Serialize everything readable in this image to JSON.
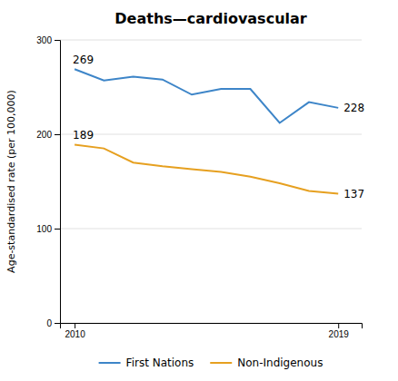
{
  "chart_data": {
    "type": "line",
    "title": "Deaths—cardiovascular",
    "ylabel": "Age-standardised rate (per 100,000)",
    "x": [
      2010,
      2011,
      2012,
      2013,
      2014,
      2015,
      2016,
      2017,
      2018,
      2019
    ],
    "series": [
      {
        "name": "First Nations",
        "color": "#3d85c8",
        "values": [
          269,
          257,
          261,
          258,
          242,
          248,
          248,
          212,
          234,
          228
        ]
      },
      {
        "name": "Non-Indigenous",
        "color": "#e6a020",
        "values": [
          189,
          185,
          170,
          166,
          163,
          160,
          155,
          148,
          140,
          137
        ]
      }
    ],
    "xlim": [
      2009.5,
      2019.8
    ],
    "xticks": [
      2010,
      2019
    ],
    "ylim": [
      0,
      300
    ],
    "yticks": [
      0,
      100,
      200,
      300
    ],
    "grid": true,
    "legend": "bottom",
    "annotations": [
      {
        "text": "269",
        "x": 2010,
        "y": 269,
        "position": "start"
      },
      {
        "text": "228",
        "x": 2019,
        "y": 228,
        "position": "end"
      },
      {
        "text": "189",
        "x": 2010,
        "y": 189,
        "position": "start"
      },
      {
        "text": "137",
        "x": 2019,
        "y": 137,
        "position": "end"
      }
    ]
  }
}
